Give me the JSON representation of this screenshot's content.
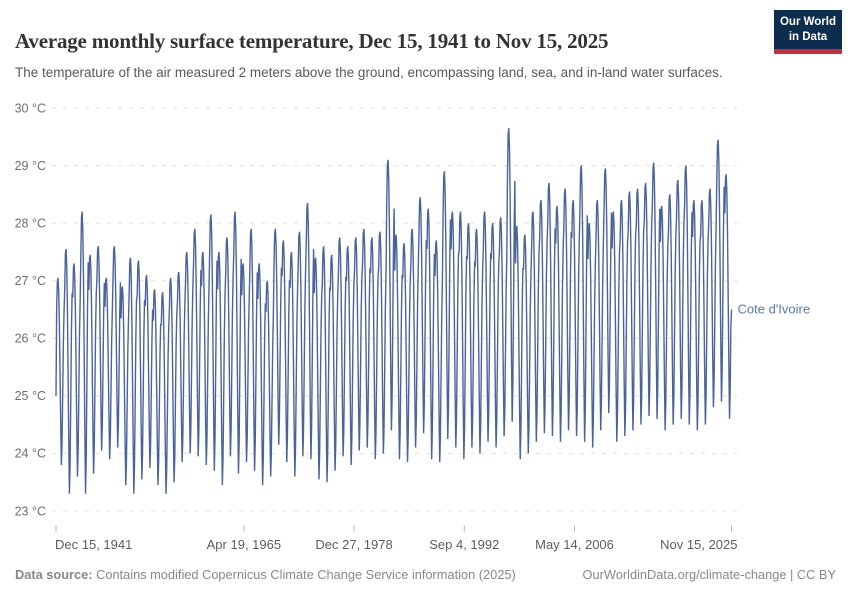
{
  "header": {
    "title": "Average monthly surface temperature, Dec 15, 1941 to Nov 15, 2025",
    "subtitle": "The temperature of the air measured 2 meters above the ground, encompassing land, sea, and in-land water surfaces.",
    "logo_line1": "Our World",
    "logo_line2": "in Data",
    "logo_bg": "#0d2d4e",
    "logo_accent": "#c32f43"
  },
  "chart_data": {
    "type": "line",
    "title": "Average monthly surface temperature",
    "entity": "Cote d'Ivoire",
    "unit": "°C",
    "line_color": "#4a649b",
    "label_color": "#5b79a8",
    "grid_color": "#e0e0e0",
    "legend_position": "right-of-line-end",
    "grid": true,
    "x_axis": {
      "range": [
        1941.958,
        2025.871
      ],
      "ticks": [
        {
          "label": "Dec 15, 1941",
          "t": 1941.958
        },
        {
          "label": "Apr 19, 1965",
          "t": 1965.297
        },
        {
          "label": "Dec 27, 1978",
          "t": 1978.986
        },
        {
          "label": "Sep 4, 1992",
          "t": 1992.677
        },
        {
          "label": "May 14, 2006",
          "t": 2006.368
        },
        {
          "label": "Nov 15, 2025",
          "t": 2025.871
        }
      ]
    },
    "y_axis": {
      "range": [
        23,
        30
      ],
      "ticks": [
        {
          "label": "30 °C",
          "value": 30
        },
        {
          "label": "29 °C",
          "value": 29
        },
        {
          "label": "28 °C",
          "value": 28
        },
        {
          "label": "27 °C",
          "value": 27
        },
        {
          "label": "26 °C",
          "value": 26
        },
        {
          "label": "25 °C",
          "value": 25
        },
        {
          "label": "24 °C",
          "value": 24
        },
        {
          "label": "23 °C",
          "value": 23
        }
      ]
    },
    "seasonal_shape_jan_to_dec": [
      0.84,
      0.98,
      1.0,
      0.93,
      0.76,
      0.5,
      0.22,
      0.0,
      0.12,
      0.38,
      0.66,
      0.82
    ],
    "series": [
      {
        "name": "Cote d'Ivoire",
        "start_point": {
          "t": 1941.958,
          "temp": 25.0
        },
        "end_point": {
          "t": 2025.871,
          "temp": 26.5
        },
        "yearly_peak_trough": [
          [
            1942,
            27.05,
            23.8
          ],
          [
            1943,
            27.55,
            23.3
          ],
          [
            1944,
            27.3,
            23.6
          ],
          [
            1945,
            28.2,
            23.3
          ],
          [
            1946,
            27.45,
            23.65
          ],
          [
            1947,
            27.6,
            24.05
          ],
          [
            1948,
            27.05,
            23.9
          ],
          [
            1949,
            27.6,
            24.1
          ],
          [
            1950,
            26.9,
            23.45
          ],
          [
            1951,
            27.4,
            23.3
          ],
          [
            1952,
            27.35,
            23.55
          ],
          [
            1953,
            27.1,
            23.75
          ],
          [
            1954,
            26.85,
            23.45
          ],
          [
            1955,
            26.8,
            23.3
          ],
          [
            1956,
            27.05,
            23.5
          ],
          [
            1957,
            27.15,
            23.85
          ],
          [
            1958,
            27.5,
            24.0
          ],
          [
            1959,
            27.9,
            23.95
          ],
          [
            1960,
            27.5,
            23.8
          ],
          [
            1961,
            28.15,
            23.7
          ],
          [
            1962,
            27.5,
            23.45
          ],
          [
            1963,
            27.75,
            23.95
          ],
          [
            1964,
            28.2,
            23.65
          ],
          [
            1965,
            27.3,
            23.85
          ],
          [
            1966,
            27.9,
            23.7
          ],
          [
            1967,
            27.3,
            23.45
          ],
          [
            1968,
            27.0,
            23.6
          ],
          [
            1969,
            27.9,
            24.15
          ],
          [
            1970,
            27.7,
            23.85
          ],
          [
            1971,
            27.5,
            23.6
          ],
          [
            1972,
            27.85,
            23.95
          ],
          [
            1973,
            28.35,
            23.9
          ],
          [
            1974,
            27.4,
            23.55
          ],
          [
            1975,
            27.6,
            23.5
          ],
          [
            1976,
            27.45,
            23.7
          ],
          [
            1977,
            27.75,
            23.95
          ],
          [
            1978,
            27.6,
            23.8
          ],
          [
            1979,
            27.75,
            24.05
          ],
          [
            1980,
            27.9,
            24.1
          ],
          [
            1981,
            27.75,
            23.9
          ],
          [
            1982,
            27.85,
            24.0
          ],
          [
            1983,
            29.1,
            24.4
          ],
          [
            1984,
            27.8,
            23.9
          ],
          [
            1985,
            27.65,
            23.85
          ],
          [
            1986,
            27.9,
            24.1
          ],
          [
            1987,
            28.45,
            24.35
          ],
          [
            1988,
            28.25,
            23.9
          ],
          [
            1989,
            27.7,
            23.85
          ],
          [
            1990,
            28.9,
            24.25
          ],
          [
            1991,
            28.2,
            24.1
          ],
          [
            1992,
            28.2,
            23.9
          ],
          [
            1993,
            28.0,
            24.1
          ],
          [
            1994,
            27.9,
            24.0
          ],
          [
            1995,
            28.2,
            24.2
          ],
          [
            1996,
            28.0,
            24.1
          ],
          [
            1997,
            28.1,
            24.3
          ],
          [
            1998,
            29.65,
            24.55
          ],
          [
            1999,
            27.95,
            23.9
          ],
          [
            2000,
            27.8,
            24.0
          ],
          [
            2001,
            28.2,
            24.2
          ],
          [
            2002,
            28.4,
            24.35
          ],
          [
            2003,
            28.7,
            24.3
          ],
          [
            2004,
            28.3,
            24.2
          ],
          [
            2005,
            28.6,
            24.4
          ],
          [
            2006,
            28.4,
            24.3
          ],
          [
            2007,
            29.0,
            24.2
          ],
          [
            2008,
            28.0,
            24.1
          ],
          [
            2009,
            28.4,
            24.4
          ],
          [
            2010,
            28.95,
            24.7
          ],
          [
            2011,
            28.2,
            24.2
          ],
          [
            2012,
            28.4,
            24.3
          ],
          [
            2013,
            28.55,
            24.4
          ],
          [
            2014,
            28.6,
            24.5
          ],
          [
            2015,
            28.7,
            24.65
          ],
          [
            2016,
            29.05,
            24.6
          ],
          [
            2017,
            28.3,
            24.4
          ],
          [
            2018,
            28.5,
            24.5
          ],
          [
            2019,
            28.75,
            24.6
          ],
          [
            2020,
            29.0,
            24.5
          ],
          [
            2021,
            28.4,
            24.4
          ],
          [
            2022,
            28.4,
            24.5
          ],
          [
            2023,
            28.6,
            24.8
          ],
          [
            2024,
            29.45,
            24.9
          ],
          [
            2025,
            28.85,
            24.6
          ]
        ],
        "months_in_last_year": 11
      }
    ]
  },
  "footer": {
    "source_label": "Data source:",
    "source_text": " Contains modified Copernicus Climate Change Service information (2025)",
    "credit": "OurWorldinData.org/climate-change | CC BY"
  }
}
